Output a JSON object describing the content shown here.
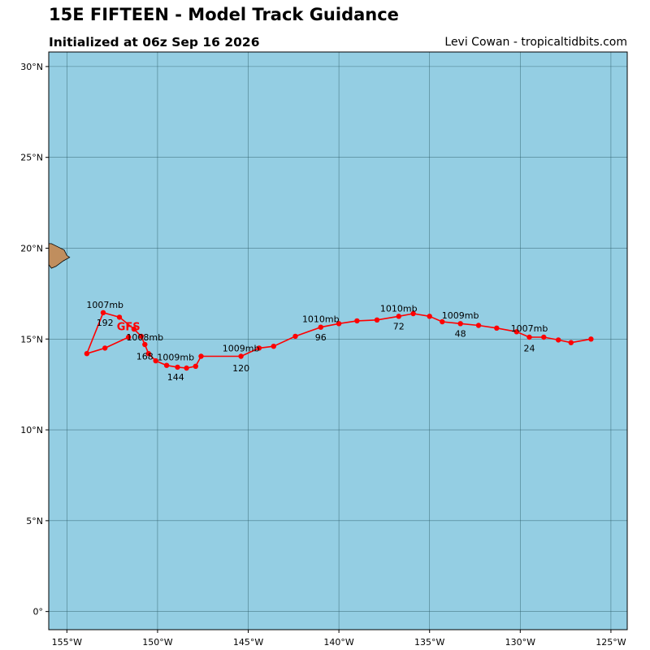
{
  "header": {
    "title": "15E FIFTEEN - Model Track Guidance",
    "subtitle": "Initialized at 06z Sep 16 2026",
    "credit": "Levi Cowan - tropicaltidbits.com"
  },
  "map": {
    "lon_range": [
      -156.0,
      -124.1
    ],
    "lat_range": [
      -1.0,
      30.8
    ],
    "ocean_color": "#94cee3",
    "land_color": "#c08e5e",
    "grid_color": "#2f5f6a",
    "lon_ticks": [
      {
        "value": -155,
        "label": "155°W"
      },
      {
        "value": -150,
        "label": "150°W"
      },
      {
        "value": -145,
        "label": "145°W"
      },
      {
        "value": -140,
        "label": "140°W"
      },
      {
        "value": -135,
        "label": "135°W"
      },
      {
        "value": -130,
        "label": "130°W"
      },
      {
        "value": -125,
        "label": "125°W"
      }
    ],
    "lat_ticks": [
      {
        "value": 0,
        "label": "0°"
      },
      {
        "value": 5,
        "label": "5°N"
      },
      {
        "value": 10,
        "label": "10°N"
      },
      {
        "value": 15,
        "label": "15°N"
      },
      {
        "value": 20,
        "label": "20°N"
      },
      {
        "value": 25,
        "label": "25°N"
      },
      {
        "value": 30,
        "label": "30°N"
      }
    ]
  },
  "island": {
    "name": "Hawaii",
    "outline": [
      [
        -156.05,
        20.25
      ],
      [
        -155.85,
        20.25
      ],
      [
        -155.55,
        20.1
      ],
      [
        -155.15,
        19.9
      ],
      [
        -155.0,
        19.6
      ],
      [
        -154.85,
        19.5
      ],
      [
        -155.2,
        19.3
      ],
      [
        -155.6,
        19.0
      ],
      [
        -155.85,
        18.9
      ],
      [
        -156.05,
        19.1
      ]
    ]
  },
  "chart_data": {
    "type": "map-track",
    "track_color": "#ff0000",
    "series": [
      {
        "name": "GFS",
        "points": [
          [
            -126.1,
            15.0
          ],
          [
            -127.2,
            14.8
          ],
          [
            -127.9,
            14.95
          ],
          [
            -128.7,
            15.1
          ],
          [
            -129.5,
            15.1
          ],
          [
            -130.2,
            15.4
          ],
          [
            -131.3,
            15.6
          ],
          [
            -132.3,
            15.75
          ],
          [
            -133.3,
            15.85
          ],
          [
            -134.3,
            15.95
          ],
          [
            -135.0,
            16.25
          ],
          [
            -135.9,
            16.4
          ],
          [
            -136.7,
            16.25
          ],
          [
            -137.9,
            16.05
          ],
          [
            -139.0,
            16.0
          ],
          [
            -140.0,
            15.85
          ],
          [
            -141.0,
            15.65
          ],
          [
            -142.4,
            15.15
          ],
          [
            -143.6,
            14.6
          ],
          [
            -144.4,
            14.5
          ],
          [
            -145.4,
            14.05
          ],
          [
            -147.6,
            14.05
          ],
          [
            -147.9,
            13.5
          ],
          [
            -148.4,
            13.4
          ],
          [
            -148.9,
            13.45
          ],
          [
            -149.5,
            13.55
          ],
          [
            -150.1,
            13.8
          ],
          [
            -150.5,
            14.2
          ],
          [
            -150.7,
            14.7
          ],
          [
            -150.9,
            15.15
          ],
          [
            -151.3,
            15.55
          ],
          [
            -152.1,
            16.2
          ],
          [
            -153.0,
            16.45
          ],
          [
            -153.9,
            14.2
          ],
          [
            -152.9,
            14.5
          ],
          [
            -151.6,
            15.1
          ]
        ],
        "label": {
          "text": "GFS",
          "lon": -151.6,
          "lat": 15.7
        }
      }
    ],
    "annotations": [
      {
        "text": "1007mb",
        "lon": -129.5,
        "lat": 15.6
      },
      {
        "text": "24",
        "lon": -129.5,
        "lat": 14.5
      },
      {
        "text": "1009mb",
        "lon": -133.3,
        "lat": 16.3
      },
      {
        "text": "48",
        "lon": -133.3,
        "lat": 15.3
      },
      {
        "text": "1010mb",
        "lon": -136.7,
        "lat": 16.7
      },
      {
        "text": "72",
        "lon": -136.7,
        "lat": 15.7
      },
      {
        "text": "1010mb",
        "lon": -141.0,
        "lat": 16.1
      },
      {
        "text": "96",
        "lon": -141.0,
        "lat": 15.1
      },
      {
        "text": "1009mb",
        "lon": -145.4,
        "lat": 14.5
      },
      {
        "text": "120",
        "lon": -145.4,
        "lat": 13.4
      },
      {
        "text": "1009mb",
        "lon": -149.0,
        "lat": 14.0
      },
      {
        "text": "144",
        "lon": -149.0,
        "lat": 12.9
      },
      {
        "text": "1008mb",
        "lon": -150.7,
        "lat": 15.1
      },
      {
        "text": "168",
        "lon": -150.7,
        "lat": 14.05
      },
      {
        "text": "1007mb",
        "lon": -152.9,
        "lat": 16.9
      },
      {
        "text": "192",
        "lon": -152.9,
        "lat": 15.9
      }
    ]
  }
}
